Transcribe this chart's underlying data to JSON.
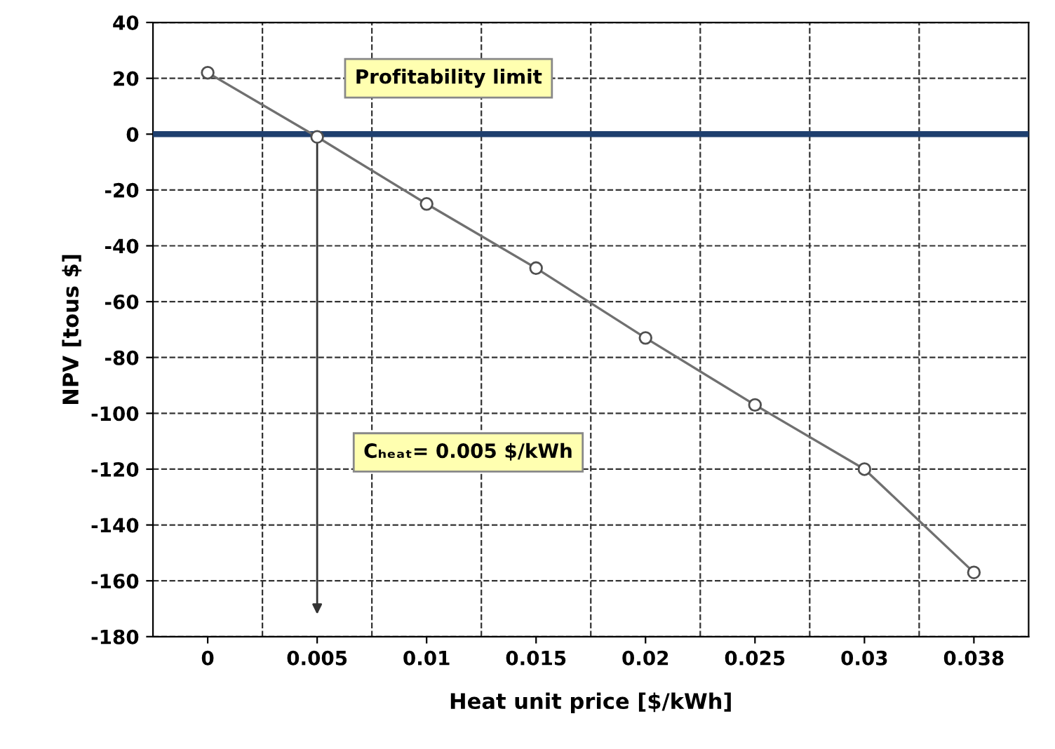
{
  "chart_data": {
    "type": "line",
    "xlabel": "Heat unit price [$/kWh]",
    "ylabel": "NPV [tous $]",
    "categories": [
      "0",
      "0.005",
      "0.01",
      "0.015",
      "0.02",
      "0.025",
      "0.03",
      "0.038"
    ],
    "series": [
      {
        "color": "#707070",
        "values": [
          22,
          -1,
          -25,
          -48,
          -73,
          -97,
          -120,
          -157
        ]
      }
    ],
    "marker": "circle",
    "line_style": "solid",
    "ylim": [
      -180,
      40
    ],
    "yticks": [
      -180,
      -160,
      -140,
      -120,
      -100,
      -80,
      -60,
      -40,
      -20,
      0,
      20,
      40
    ],
    "grid": true,
    "ref_lines": [
      {
        "axis": "y",
        "value": 0,
        "label": "Profitability limit",
        "color": "#1f3f6e"
      }
    ],
    "annotations": [
      "Cₕₑₐₜ= 0.005 $/kWh"
    ]
  }
}
